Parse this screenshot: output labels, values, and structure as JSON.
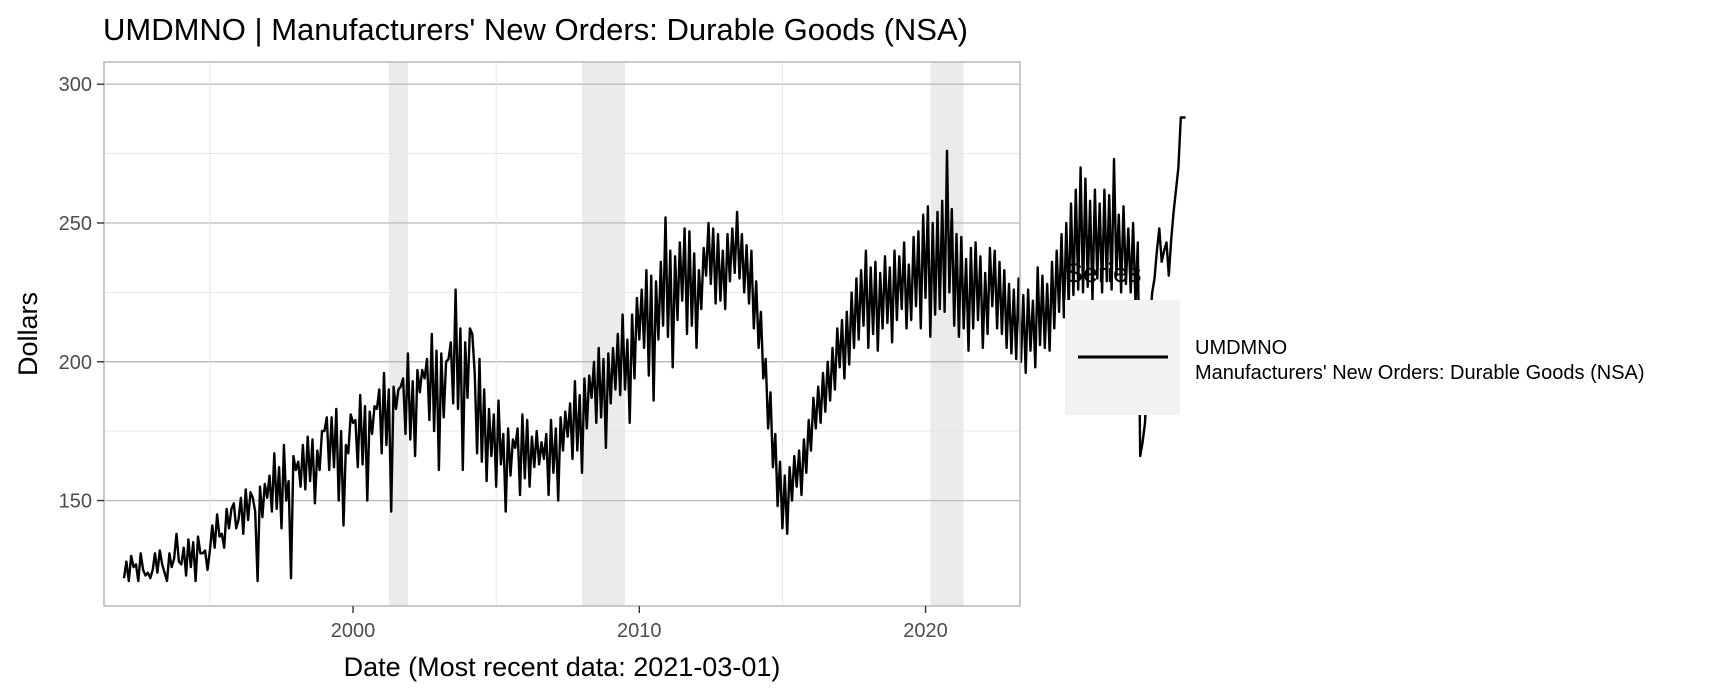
{
  "chart_data": {
    "type": "line",
    "title": "UMDMNO | Manufacturers' New Orders: Durable Goods (NSA)",
    "xlabel": "Date (Most recent data: 2021-03-01)",
    "ylabel": "Dollars",
    "xlim": [
      1991.3,
      2023.3
    ],
    "ylim": [
      112,
      308
    ],
    "x_ticks": [
      {
        "value": 2000,
        "label": "2000"
      },
      {
        "value": 2010,
        "label": "2010"
      },
      {
        "value": 2020,
        "label": "2020"
      }
    ],
    "y_ticks": [
      {
        "value": 150,
        "label": "150"
      },
      {
        "value": 200,
        "label": "200"
      },
      {
        "value": 250,
        "label": "250"
      },
      {
        "value": 300,
        "label": "300"
      }
    ],
    "grid": true,
    "recession_shading": [
      {
        "start": 2001.25,
        "end": 2001.92
      },
      {
        "start": 2008.0,
        "end": 2009.5
      },
      {
        "start": 2020.17,
        "end": 2021.33
      }
    ],
    "legend": {
      "title": "Series",
      "position": "right"
    },
    "series": [
      {
        "name_line1": "UMDMNO",
        "name_line2": "Manufacturers' New Orders: Durable Goods (NSA)",
        "color": "#000000",
        "x_start": 1992.0,
        "x_step": 0.0833333,
        "values": [
          122,
          128,
          121,
          130,
          126,
          127,
          121,
          131,
          125,
          123,
          124,
          122,
          125,
          131,
          124,
          132,
          127,
          124,
          121,
          131,
          126,
          129,
          138,
          128,
          127,
          133,
          123,
          136,
          126,
          135,
          121,
          137,
          131,
          131,
          132,
          125,
          132,
          141,
          133,
          145,
          137,
          138,
          133,
          147,
          140,
          147,
          149,
          140,
          143,
          151,
          138,
          154,
          143,
          153,
          151,
          146,
          121,
          155,
          144,
          156,
          151,
          159,
          146,
          167,
          147,
          162,
          140,
          170,
          150,
          157,
          122,
          166,
          161,
          164,
          155,
          170,
          154,
          173,
          157,
          172,
          149,
          168,
          161,
          175,
          175,
          180,
          161,
          180,
          162,
          183,
          150,
          175,
          141,
          170,
          167,
          181,
          178,
          179,
          162,
          188,
          163,
          184,
          150,
          182,
          174,
          184,
          183,
          190,
          167,
          196,
          170,
          190,
          146,
          191,
          183,
          190,
          191,
          194,
          174,
          203,
          172,
          193,
          166,
          197,
          189,
          197,
          194,
          201,
          179,
          210,
          175,
          204,
          161,
          203,
          180,
          200,
          201,
          207,
          185,
          226,
          183,
          212,
          161,
          207,
          187,
          212,
          210,
          196,
          167,
          201,
          164,
          190,
          157,
          183,
          166,
          181,
          155,
          186,
          163,
          174,
          146,
          176,
          159,
          172,
          169,
          176,
          152,
          181,
          158,
          179,
          155,
          173,
          162,
          175,
          163,
          171,
          165,
          174,
          152,
          179,
          160,
          176,
          150,
          180,
          168,
          182,
          173,
          185,
          165,
          193,
          168,
          188,
          160,
          194,
          176,
          195,
          187,
          200,
          178,
          205,
          180,
          201,
          169,
          203,
          185,
          205,
          190,
          210,
          188,
          217,
          190,
          208,
          178,
          217,
          194,
          223,
          208,
          226,
          205,
          233,
          195,
          231,
          186,
          229,
          208,
          236,
          213,
          252,
          209,
          240,
          198,
          238,
          215,
          243,
          222,
          248,
          210,
          247,
          213,
          239,
          205,
          233,
          219,
          241,
          231,
          250,
          228,
          248,
          221,
          246,
          222,
          240,
          219,
          246,
          229,
          248,
          232,
          254,
          230,
          246,
          225,
          242,
          221,
          240,
          212,
          229,
          205,
          218,
          194,
          201,
          176,
          189,
          162,
          174,
          148,
          164,
          140,
          159,
          138,
          162,
          150,
          166,
          155,
          168,
          152,
          172,
          160,
          179,
          168,
          187,
          176,
          191,
          178,
          196,
          182,
          200,
          186,
          205,
          190,
          212,
          198,
          215,
          194,
          218,
          199,
          225,
          205,
          230,
          208,
          233,
          213,
          240,
          205,
          234,
          210,
          236,
          204,
          232,
          212,
          238,
          214,
          234,
          207,
          240,
          215,
          238,
          219,
          243,
          212,
          235,
          215,
          245,
          220,
          247,
          212,
          253,
          223,
          256,
          209,
          250,
          217,
          254,
          219,
          258,
          218,
          276,
          225,
          255,
          213,
          246,
          209,
          245,
          212,
          237,
          204,
          241,
          212,
          243,
          215,
          238,
          205,
          232,
          210,
          241,
          220,
          240,
          212,
          236,
          210,
          233,
          205,
          228,
          203,
          226,
          201,
          230,
          200,
          224,
          196,
          226,
          204,
          222,
          198,
          234,
          206,
          231,
          205,
          228,
          204,
          236,
          212,
          240,
          218,
          246,
          216,
          250,
          220,
          257,
          224,
          262,
          226,
          270,
          225,
          266,
          227,
          258,
          222,
          262,
          230,
          257,
          225,
          262,
          229,
          260,
          226,
          273,
          231,
          253,
          225,
          256,
          228,
          248,
          225,
          250,
          221,
          243,
          166,
          171,
          178,
          196,
          214,
          225,
          230,
          240,
          248,
          236,
          240,
          243,
          231,
          244,
          254,
          262,
          270,
          288,
          288,
          288
        ]
      }
    ]
  }
}
